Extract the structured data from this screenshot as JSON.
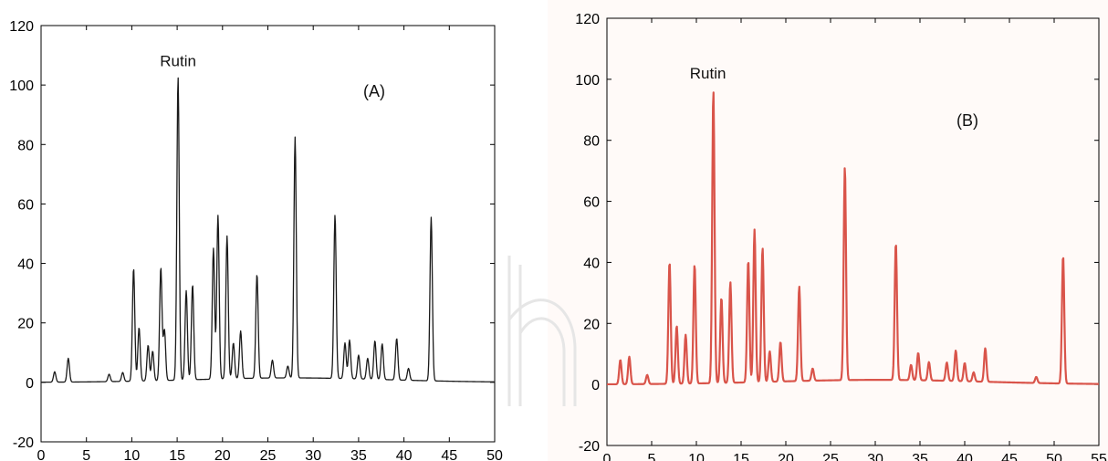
{
  "chart_data": [
    {
      "type": "line",
      "panel_label": "(A)",
      "annotation": "Rutin",
      "line_color": "#1a1a1a",
      "xlim": [
        0,
        50
      ],
      "ylim": [
        -20,
        120
      ],
      "x_ticks": [
        0,
        5,
        10,
        15,
        20,
        25,
        30,
        35,
        40,
        45,
        50
      ],
      "y_ticks": [
        -20,
        0,
        20,
        40,
        60,
        80,
        100,
        120
      ],
      "baseline": 0,
      "peaks": [
        {
          "x": 1.5,
          "y": 3.5
        },
        {
          "x": 3.0,
          "y": 8
        },
        {
          "x": 7.5,
          "y": 2.5
        },
        {
          "x": 9.0,
          "y": 3
        },
        {
          "x": 10.2,
          "y": 38
        },
        {
          "x": 10.8,
          "y": 18
        },
        {
          "x": 11.8,
          "y": 12
        },
        {
          "x": 12.3,
          "y": 10
        },
        {
          "x": 13.2,
          "y": 38
        },
        {
          "x": 13.6,
          "y": 17
        },
        {
          "x": 15.1,
          "y": 102
        },
        {
          "x": 16.0,
          "y": 30
        },
        {
          "x": 16.7,
          "y": 32
        },
        {
          "x": 19.0,
          "y": 44
        },
        {
          "x": 19.5,
          "y": 55
        },
        {
          "x": 20.5,
          "y": 48
        },
        {
          "x": 21.2,
          "y": 12
        },
        {
          "x": 22.0,
          "y": 16
        },
        {
          "x": 23.8,
          "y": 35
        },
        {
          "x": 25.5,
          "y": 6
        },
        {
          "x": 27.2,
          "y": 4
        },
        {
          "x": 28.0,
          "y": 81
        },
        {
          "x": 32.4,
          "y": 55
        },
        {
          "x": 33.5,
          "y": 12
        },
        {
          "x": 34.0,
          "y": 13
        },
        {
          "x": 35.0,
          "y": 8
        },
        {
          "x": 36.0,
          "y": 7
        },
        {
          "x": 36.8,
          "y": 13
        },
        {
          "x": 37.6,
          "y": 12
        },
        {
          "x": 39.2,
          "y": 14
        },
        {
          "x": 40.5,
          "y": 4
        },
        {
          "x": 43.0,
          "y": 55
        }
      ]
    },
    {
      "type": "line",
      "panel_label": "(B)",
      "annotation": "Rutin",
      "line_color": "#d9544a",
      "xlim": [
        0,
        55
      ],
      "ylim": [
        -20,
        120
      ],
      "x_ticks": [
        0,
        5,
        10,
        15,
        20,
        25,
        30,
        35,
        40,
        45,
        50,
        55
      ],
      "y_ticks": [
        -20,
        0,
        20,
        40,
        60,
        80,
        100,
        120
      ],
      "baseline": 0,
      "peaks": [
        {
          "x": 1.5,
          "y": 8
        },
        {
          "x": 2.5,
          "y": 9
        },
        {
          "x": 4.5,
          "y": 3
        },
        {
          "x": 7.0,
          "y": 40
        },
        {
          "x": 7.8,
          "y": 19
        },
        {
          "x": 8.8,
          "y": 16
        },
        {
          "x": 9.8,
          "y": 39
        },
        {
          "x": 11.9,
          "y": 96
        },
        {
          "x": 12.8,
          "y": 28
        },
        {
          "x": 13.8,
          "y": 33
        },
        {
          "x": 15.8,
          "y": 40
        },
        {
          "x": 16.5,
          "y": 50
        },
        {
          "x": 17.4,
          "y": 44
        },
        {
          "x": 18.2,
          "y": 10
        },
        {
          "x": 19.4,
          "y": 13
        },
        {
          "x": 21.5,
          "y": 31
        },
        {
          "x": 23.0,
          "y": 4
        },
        {
          "x": 26.6,
          "y": 70
        },
        {
          "x": 32.3,
          "y": 45
        },
        {
          "x": 34.0,
          "y": 5
        },
        {
          "x": 34.8,
          "y": 9
        },
        {
          "x": 36.0,
          "y": 6
        },
        {
          "x": 38.0,
          "y": 6
        },
        {
          "x": 39.0,
          "y": 10
        },
        {
          "x": 40.0,
          "y": 6
        },
        {
          "x": 41.0,
          "y": 3
        },
        {
          "x": 42.3,
          "y": 11
        },
        {
          "x": 48.0,
          "y": 2
        },
        {
          "x": 51.0,
          "y": 42
        }
      ]
    }
  ]
}
